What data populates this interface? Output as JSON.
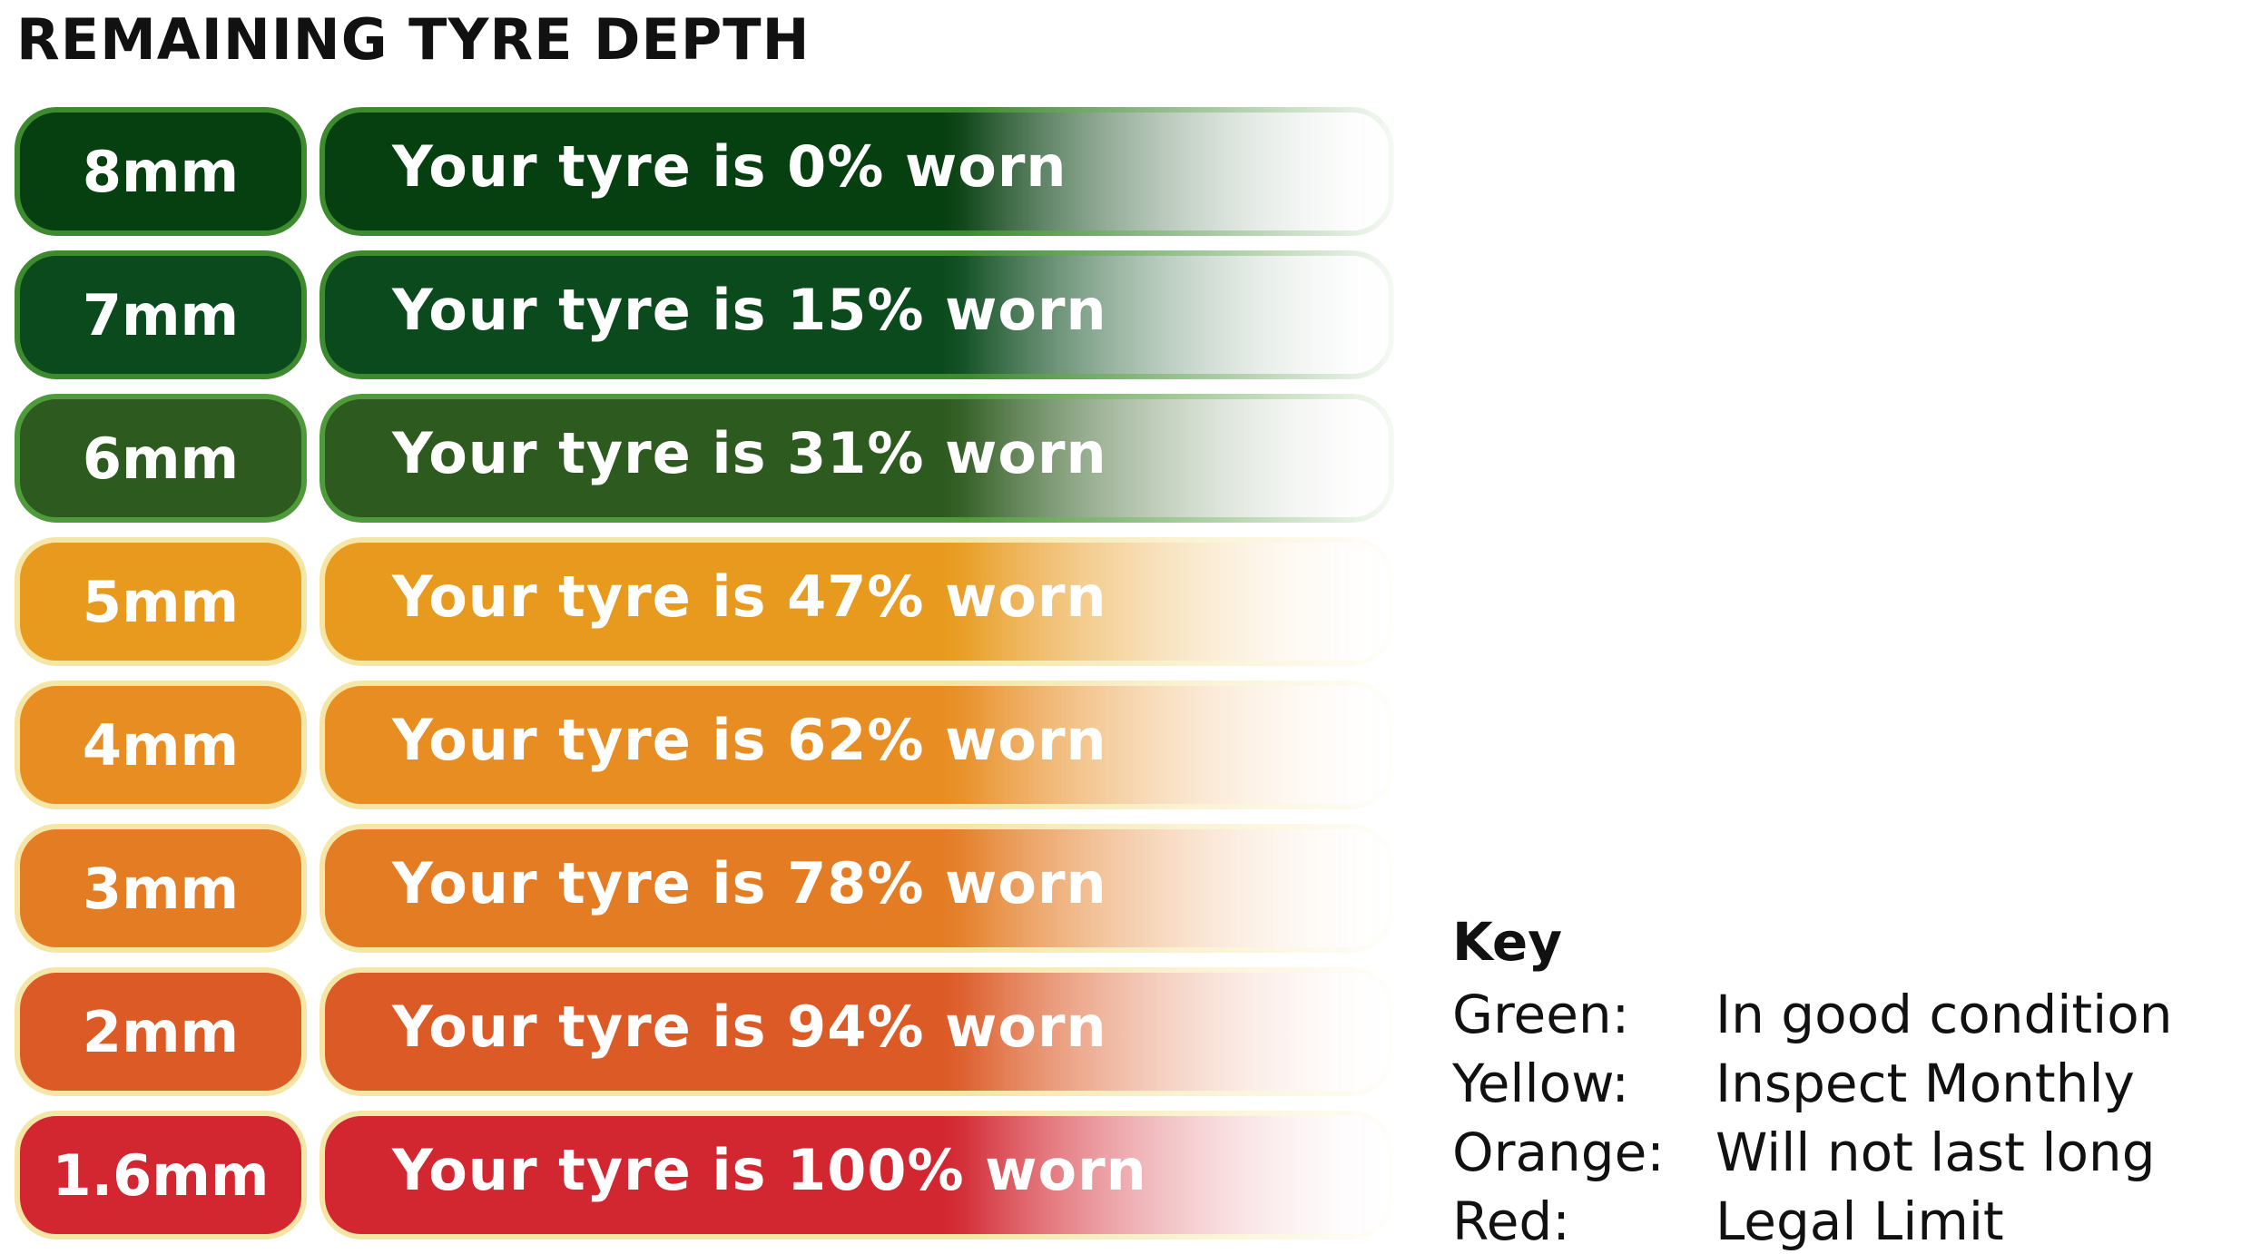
{
  "title": "REMAINING TYRE DEPTH",
  "rows": [
    {
      "depth": "8mm",
      "text": "Your tyre is 0% worn",
      "fill": "#063f10",
      "edge": "#3d8a2f"
    },
    {
      "depth": "7mm",
      "text": "Your tyre is 15% worn",
      "fill": "#0a4a1c",
      "edge": "#3d8a2f"
    },
    {
      "depth": "6mm",
      "text": "Your tyre is 31% worn",
      "fill": "#2d5a1e",
      "edge": "#4f9a3a"
    },
    {
      "depth": "5mm",
      "text": "Your tyre is 47% worn",
      "fill": "#e89a1e",
      "edge": "#f5e6a6"
    },
    {
      "depth": "4mm",
      "text": "Your tyre is 62% worn",
      "fill": "#e88d22",
      "edge": "#f5e6a6"
    },
    {
      "depth": "3mm",
      "text": "Your tyre is 78% worn",
      "fill": "#e47c24",
      "edge": "#f5e6a6"
    },
    {
      "depth": "2mm",
      "text": "Your tyre is 94% worn",
      "fill": "#dc5a26",
      "edge": "#f5e6a6"
    },
    {
      "depth": "1.6mm",
      "text": "Your tyre is 100% worn",
      "fill": "#d22630",
      "edge": "#f5e6a6"
    }
  ],
  "key": {
    "title": "Key",
    "items": [
      {
        "color": "Green:",
        "meaning": "In good condition"
      },
      {
        "color": "Yellow:",
        "meaning": "Inspect Monthly"
      },
      {
        "color": "Orange:",
        "meaning": "Will not last long"
      },
      {
        "color": "Red:",
        "meaning": "Legal Limit"
      }
    ]
  }
}
